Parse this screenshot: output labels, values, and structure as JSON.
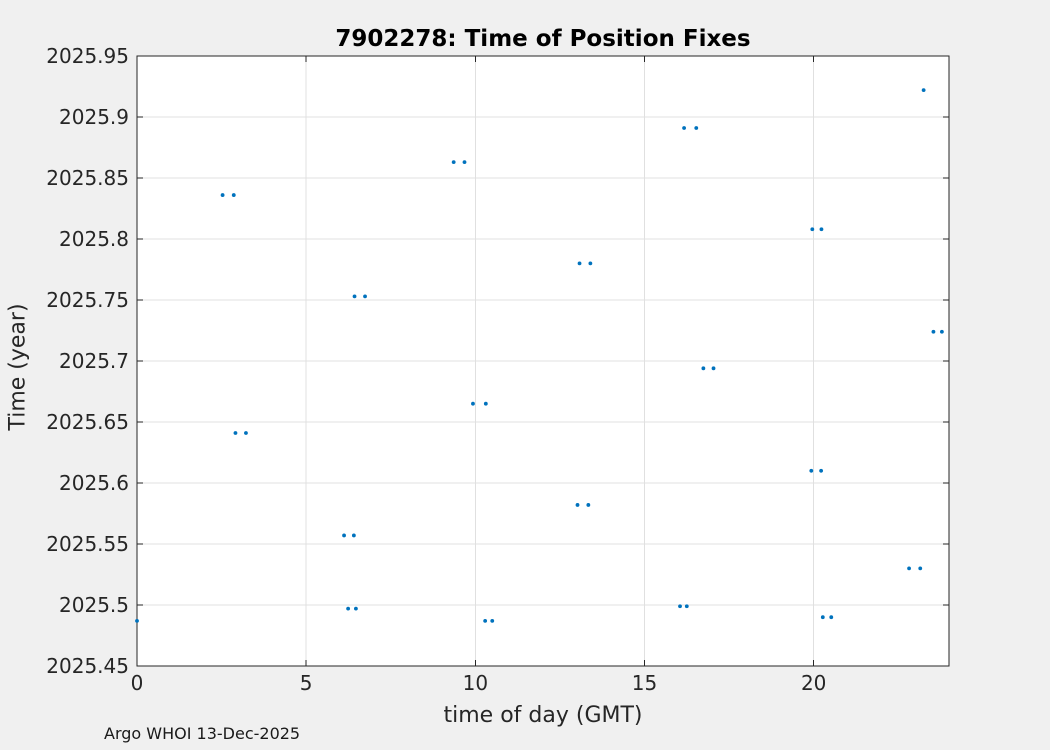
{
  "figure": {
    "title": "7902278: Time of Position Fixes",
    "footer": "Argo WHOI 13-Dec-2025",
    "background_color": "#f0f0f0",
    "plot_background_color": "#ffffff"
  },
  "chart_data": {
    "type": "scatter",
    "title": "7902278: Time of Position Fixes",
    "xlabel": "time of day (GMT)",
    "ylabel": "Time (year)",
    "xlim": [
      0,
      24
    ],
    "ylim": [
      2025.45,
      2025.95
    ],
    "grid": true,
    "legend": "none",
    "marker": "filled-circle",
    "marker_color": "#0072BD",
    "grid_color": "#e0e0e0",
    "axis_color": "#262626",
    "x_ticks": [
      {
        "v": 0,
        "label": "0"
      },
      {
        "v": 5,
        "label": "5"
      },
      {
        "v": 10,
        "label": "10"
      },
      {
        "v": 15,
        "label": "15"
      },
      {
        "v": 20,
        "label": "20"
      }
    ],
    "y_ticks": [
      {
        "v": 2025.45,
        "label": "2025.45"
      },
      {
        "v": 2025.5,
        "label": "2025.5"
      },
      {
        "v": 2025.55,
        "label": "2025.55"
      },
      {
        "v": 2025.6,
        "label": "2025.6"
      },
      {
        "v": 2025.65,
        "label": "2025.65"
      },
      {
        "v": 2025.7,
        "label": "2025.7"
      },
      {
        "v": 2025.75,
        "label": "2025.75"
      },
      {
        "v": 2025.8,
        "label": "2025.8"
      },
      {
        "v": 2025.85,
        "label": "2025.85"
      },
      {
        "v": 2025.9,
        "label": "2025.9"
      },
      {
        "v": 2025.95,
        "label": "2025.95"
      }
    ],
    "points": [
      [
        0.0,
        2025.487
      ],
      [
        2.53,
        2025.836
      ],
      [
        2.86,
        2025.836
      ],
      [
        2.91,
        2025.641
      ],
      [
        3.22,
        2025.641
      ],
      [
        6.12,
        2025.557
      ],
      [
        6.41,
        2025.557
      ],
      [
        6.24,
        2025.497
      ],
      [
        6.47,
        2025.497
      ],
      [
        6.43,
        2025.753
      ],
      [
        6.74,
        2025.753
      ],
      [
        9.36,
        2025.863
      ],
      [
        9.68,
        2025.863
      ],
      [
        9.93,
        2025.665
      ],
      [
        10.31,
        2025.665
      ],
      [
        10.29,
        2025.487
      ],
      [
        10.5,
        2025.487
      ],
      [
        13.02,
        2025.582
      ],
      [
        13.34,
        2025.582
      ],
      [
        13.08,
        2025.78
      ],
      [
        13.4,
        2025.78
      ],
      [
        16.05,
        2025.499
      ],
      [
        16.25,
        2025.499
      ],
      [
        16.17,
        2025.891
      ],
      [
        16.53,
        2025.891
      ],
      [
        16.74,
        2025.694
      ],
      [
        17.04,
        2025.694
      ],
      [
        19.93,
        2025.61
      ],
      [
        20.22,
        2025.61
      ],
      [
        19.96,
        2025.808
      ],
      [
        20.23,
        2025.808
      ],
      [
        20.27,
        2025.49
      ],
      [
        20.52,
        2025.49
      ],
      [
        22.82,
        2025.53
      ],
      [
        23.15,
        2025.53
      ],
      [
        23.25,
        2025.922
      ],
      [
        23.54,
        2025.724
      ],
      [
        23.79,
        2025.724
      ]
    ]
  }
}
